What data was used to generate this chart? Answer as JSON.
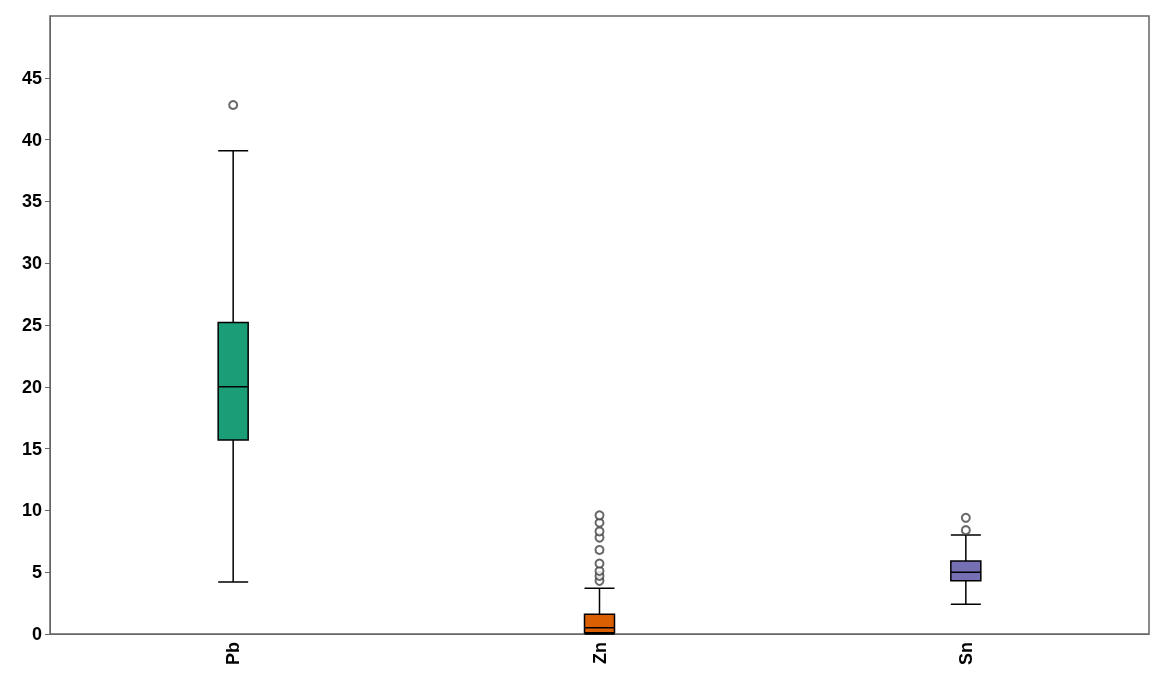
{
  "chart_data": {
    "type": "box",
    "categories": [
      "Pb",
      "Zn",
      "Sn"
    ],
    "colors": [
      "#1b9e77",
      "#d95f02",
      "#7570b3"
    ],
    "boxes": [
      {
        "low": 4.2,
        "q1": 15.7,
        "median": 20,
        "q3": 25.2,
        "high": 39.1,
        "outliers": [
          42.8
        ]
      },
      {
        "low": 0,
        "q1": 0.1,
        "median": 0.5,
        "q3": 1.6,
        "high": 3.7,
        "outliers": [
          4.3,
          4.7,
          5.1,
          5.7,
          6.8,
          7.8,
          8.3,
          9.0,
          9.6
        ]
      },
      {
        "low": 2.4,
        "q1": 4.3,
        "median": 5.0,
        "q3": 5.9,
        "high": 8.0,
        "outliers": [
          8.4,
          9.4
        ]
      }
    ],
    "ylim": [
      0,
      50
    ],
    "yticks": [
      0,
      5,
      10,
      15,
      20,
      25,
      30,
      35,
      40,
      45
    ],
    "grid": false
  }
}
